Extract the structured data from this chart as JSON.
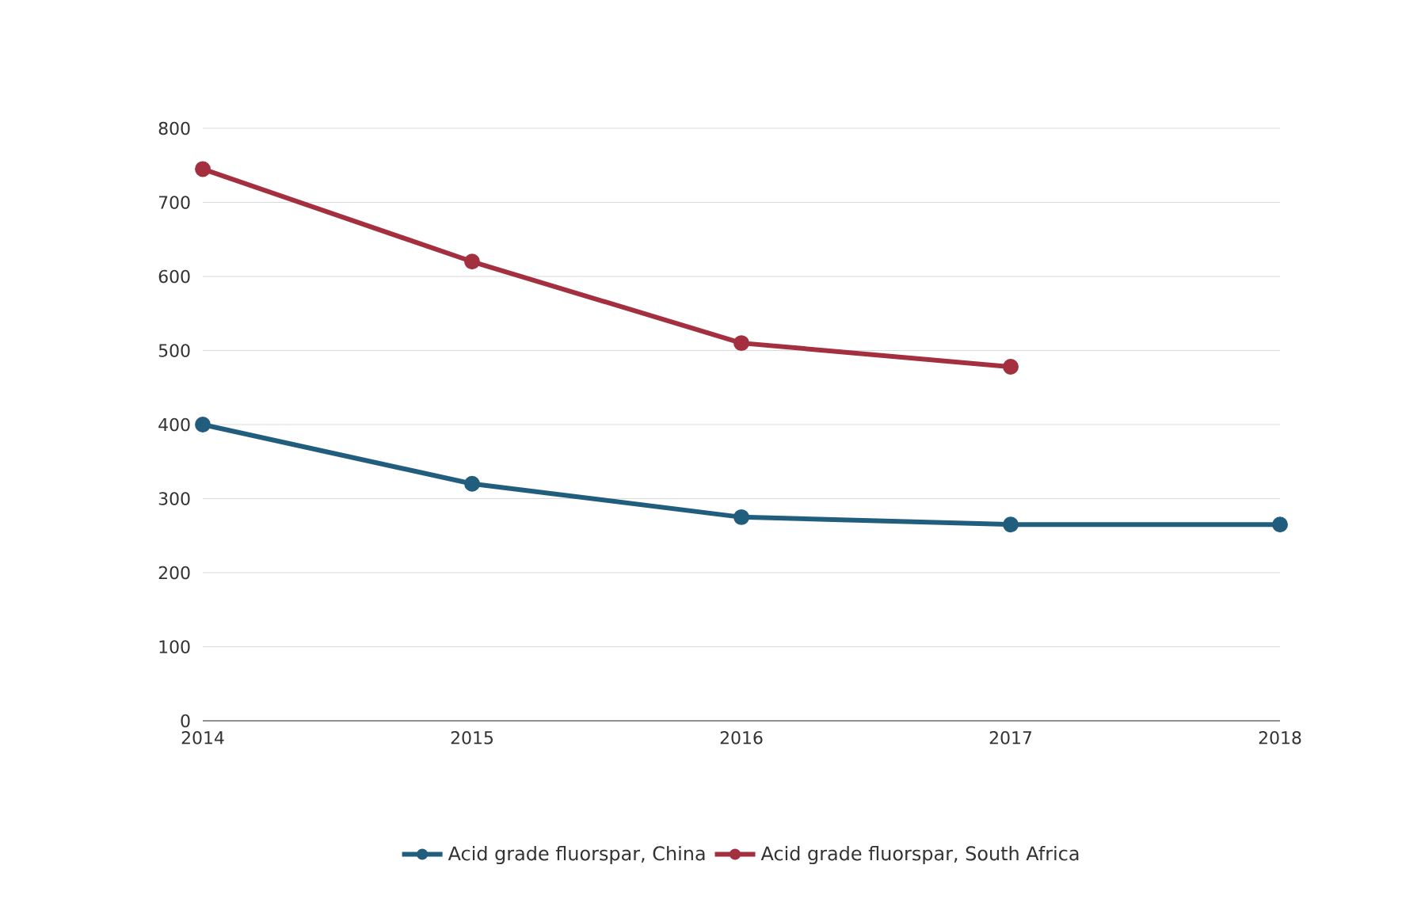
{
  "chart_data": {
    "type": "line",
    "categories": [
      "2014",
      "2015",
      "2016",
      "2017",
      "2018"
    ],
    "series": [
      {
        "name": "Acid grade fluorspar, China",
        "color": "#215e7e",
        "values": [
          400,
          320,
          275,
          265,
          265
        ]
      },
      {
        "name": "Acid grade fluorspar, South Africa",
        "color": "#a4303f",
        "values": [
          745,
          620,
          510,
          478,
          null
        ]
      }
    ],
    "ylim": [
      0,
      800
    ],
    "yticks": [
      0,
      100,
      200,
      300,
      400,
      500,
      600,
      700,
      800
    ],
    "grid": "y",
    "legend": "bottom",
    "marker": "circle",
    "line_style": "solid"
  }
}
